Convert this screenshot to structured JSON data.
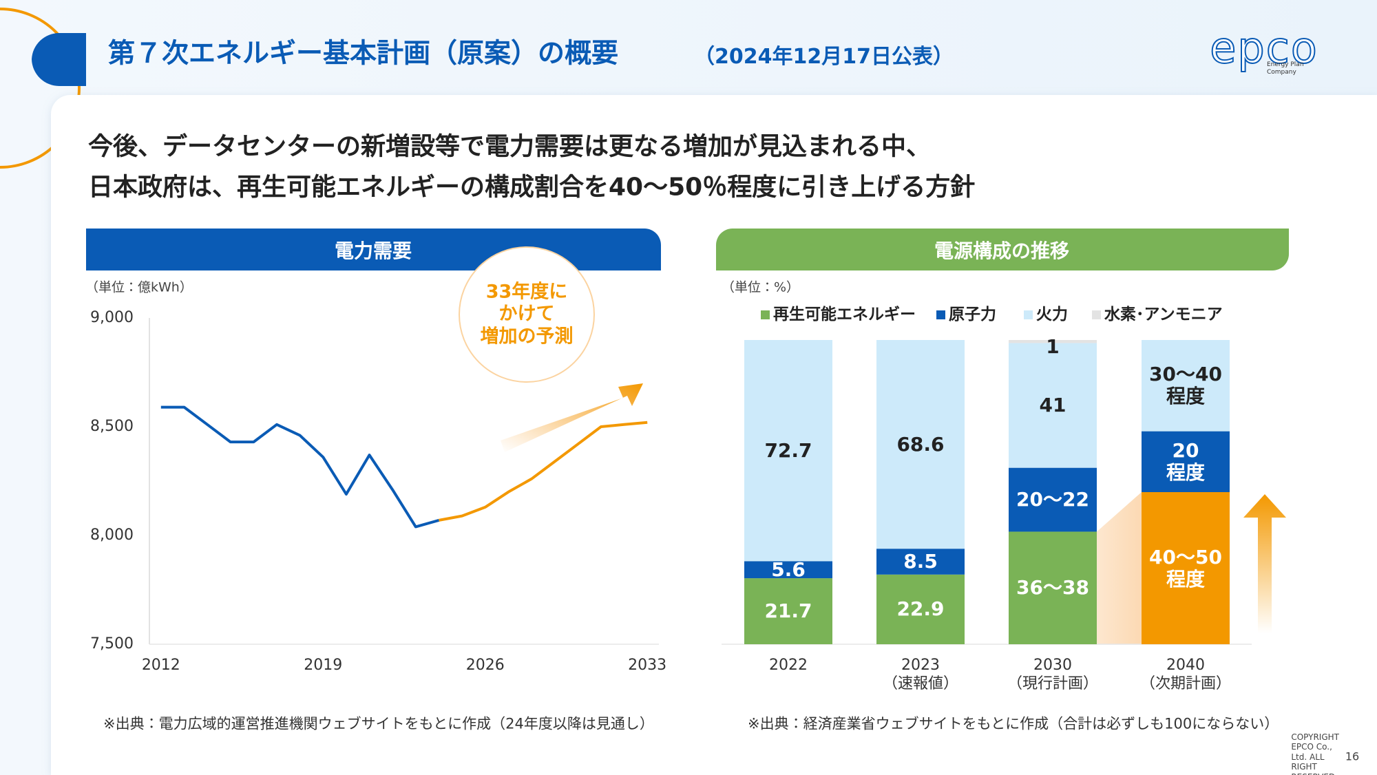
{
  "header": {
    "title": "第７次エネルギー基本計画（原案）の概要",
    "date": "（2024年12月17日公表）",
    "logo": "epco",
    "logo_tagline": "Energy Plan Company"
  },
  "headline": [
    "今後、データセンターの新増設等で電力需要は更なる増加が見込まれる中、",
    "日本政府は、再生可能エネルギーの構成割合を40～50％程度に引き上げる方針"
  ],
  "chart_data": [
    {
      "type": "line",
      "title": "電力需要",
      "unit": "（単位：億kWh）",
      "annotation": "33年度に\nかけて\n増加の予測",
      "x": [
        2012,
        2013,
        2014,
        2015,
        2016,
        2017,
        2018,
        2019,
        2020,
        2021,
        2022,
        2023,
        2024,
        2025,
        2026,
        2027,
        2028,
        2029,
        2030,
        2031,
        2032,
        2033
      ],
      "series": [
        {
          "color": "#0a5bb5",
          "values": [
            8590,
            8590,
            8510,
            8430,
            8430,
            8510,
            8460,
            8360,
            8190,
            8370,
            8210,
            8040,
            8070,
            null,
            null,
            null,
            null,
            null,
            null,
            null,
            null,
            null
          ]
        },
        {
          "color": "#f39800",
          "values": [
            null,
            null,
            null,
            null,
            null,
            null,
            null,
            null,
            null,
            null,
            null,
            null,
            8070,
            8090,
            8130,
            8200,
            8260,
            8340,
            8420,
            8500,
            8510,
            8520
          ]
        }
      ],
      "xlim": [
        2011.5,
        2033.5
      ],
      "xticks": [
        2012,
        2019,
        2026,
        2033
      ],
      "ylim": [
        7500,
        9000
      ],
      "yticks": [
        {
          "value": 7500,
          "label": "7,500"
        },
        {
          "value": 8000,
          "label": "8,000"
        },
        {
          "value": 8500,
          "label": "8,500"
        },
        {
          "value": 9000,
          "label": "9,000"
        }
      ],
      "grid": false,
      "source": "※出典：電力広域的運営推進機関ウェブサイトをもとに作成（24年度以降は見通し）"
    },
    {
      "type": "stacked_bar",
      "title": "電源構成の推移",
      "unit": "（単位：%）",
      "categories": [
        "2022",
        "2023",
        "2030",
        "2040"
      ],
      "category_notes": [
        null,
        "（速報値）",
        "（現行計画）",
        "（次期計画）"
      ],
      "series": [
        {
          "name": "再生可能エネルギー",
          "color": "#7ab356",
          "point_colors": [
            null,
            null,
            null,
            "#f39800"
          ],
          "label_color": "#ffffff",
          "values": [
            21.7,
            22.9,
            37,
            50
          ],
          "value_labels": [
            null,
            null,
            "36～38",
            "40～50\n程度"
          ]
        },
        {
          "name": "原子力",
          "color": "#0a5bb5",
          "label_color": "#ffffff",
          "values": [
            5.6,
            8.5,
            21,
            20
          ],
          "value_labels": [
            null,
            null,
            "20～22",
            "20\n程度"
          ]
        },
        {
          "name": "火力",
          "color": "#cdeafa",
          "label_color": "#222222",
          "values": [
            72.7,
            68.6,
            41,
            30
          ],
          "value_labels": [
            null,
            null,
            null,
            "30～40\n程度"
          ]
        },
        {
          "name": "水素･アンモニア",
          "color": "#e3e3e3",
          "label_color": "#222222",
          "values": [
            null,
            null,
            1,
            null
          ],
          "value_labels": [
            null,
            null,
            null,
            null
          ]
        }
      ],
      "ylim": [
        0,
        100
      ],
      "source": "※出典：経済産業省ウェブサイトをもとに作成（合計は必ずしも100にならない）"
    }
  ],
  "copyright": "COPYRIGHT EPCO Co., Ltd. ALL RIGHT RESERVED.",
  "page_number": "16"
}
